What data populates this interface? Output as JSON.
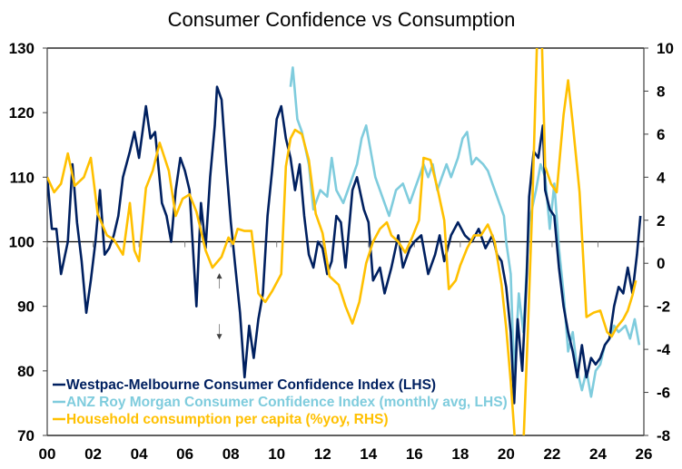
{
  "chart_data": {
    "type": "line",
    "title": "Consumer Confidence vs Consumption",
    "xlabel": "",
    "ylabel_left": "",
    "ylabel_right": "",
    "x_range": [
      2000,
      2026
    ],
    "x_ticks": [
      2000,
      2002,
      2004,
      2006,
      2008,
      2010,
      2012,
      2014,
      2016,
      2018,
      2020,
      2022,
      2024,
      2026
    ],
    "x_tick_labels": [
      "00",
      "02",
      "04",
      "06",
      "08",
      "10",
      "12",
      "14",
      "16",
      "18",
      "20",
      "22",
      "24",
      "26"
    ],
    "ylim_left": [
      70,
      130
    ],
    "yticks_left": [
      "130",
      "120",
      "110",
      "100",
      "90",
      "80",
      "70"
    ],
    "ylim_right": [
      -8,
      10
    ],
    "yticks_right": [
      "10",
      "8",
      "6",
      "4",
      "2",
      "0",
      "-2",
      "-4",
      "-6",
      "-8"
    ],
    "reference_line_left": 100,
    "grid": false,
    "legend_position": "bottom-left",
    "series": [
      {
        "name": "Westpac-Melbourne Consumer Confidence Index (LHS)",
        "axis": "left",
        "color": "#002060",
        "x": [
          2000.0,
          2000.2,
          2000.4,
          2000.6,
          2000.9,
          2001.1,
          2001.3,
          2001.5,
          2001.7,
          2001.9,
          2002.1,
          2002.3,
          2002.5,
          2002.7,
          2002.9,
          2003.1,
          2003.3,
          2003.6,
          2003.8,
          2004.0,
          2004.3,
          2004.5,
          2004.7,
          2005.0,
          2005.2,
          2005.4,
          2005.6,
          2005.8,
          2006.0,
          2006.2,
          2006.5,
          2006.7,
          2006.9,
          2007.1,
          2007.3,
          2007.4,
          2007.6,
          2007.8,
          2008.0,
          2008.2,
          2008.4,
          2008.6,
          2008.8,
          2009.0,
          2009.2,
          2009.4,
          2009.6,
          2009.8,
          2010.0,
          2010.2,
          2010.4,
          2010.6,
          2010.8,
          2011.0,
          2011.2,
          2011.4,
          2011.6,
          2011.8,
          2012.0,
          2012.2,
          2012.4,
          2012.6,
          2012.8,
          2013.0,
          2013.3,
          2013.5,
          2013.8,
          2014.0,
          2014.2,
          2014.5,
          2014.7,
          2015.0,
          2015.3,
          2015.5,
          2015.8,
          2016.0,
          2016.3,
          2016.6,
          2016.9,
          2017.1,
          2017.3,
          2017.6,
          2017.9,
          2018.2,
          2018.5,
          2018.8,
          2019.1,
          2019.4,
          2019.6,
          2019.8,
          2020.0,
          2020.2,
          2020.35,
          2020.5,
          2020.7,
          2020.9,
          2021.0,
          2021.2,
          2021.4,
          2021.6,
          2021.7,
          2021.9,
          2022.1,
          2022.3,
          2022.5,
          2022.7,
          2022.9,
          2023.1,
          2023.3,
          2023.5,
          2023.7,
          2023.9,
          2024.1,
          2024.3,
          2024.5,
          2024.7,
          2024.9,
          2025.1,
          2025.3,
          2025.5,
          2025.7,
          2025.85
        ],
        "values": [
          110,
          102,
          102,
          95,
          100,
          112,
          103,
          97,
          89,
          94,
          100,
          108,
          98,
          99,
          101,
          104,
          110,
          114,
          117,
          113,
          121,
          116,
          117,
          106,
          104,
          100,
          108,
          113,
          111,
          108,
          90,
          106,
          99,
          110,
          118,
          124,
          122,
          112,
          103,
          96,
          89,
          79,
          87,
          82,
          88,
          92,
          104,
          111,
          119,
          121,
          116,
          113,
          108,
          112,
          104,
          98,
          96,
          100,
          99,
          95,
          97,
          104,
          103,
          96,
          108,
          110,
          105,
          103,
          94,
          96,
          92,
          96,
          101,
          96,
          99,
          100,
          101,
          95,
          98,
          101,
          97,
          101,
          103,
          101,
          100,
          102,
          99,
          101,
          98,
          97,
          93,
          86,
          75,
          88,
          80,
          95,
          107,
          114,
          113,
          118,
          108,
          105,
          104,
          96,
          90,
          86,
          83,
          79,
          84,
          79,
          82,
          81,
          82,
          84,
          85,
          90,
          93,
          92,
          96,
          92,
          98,
          104
        ]
      },
      {
        "name": "ANZ Roy Morgan Consumer Confidence Index (monthly avg, LHS)",
        "axis": "left",
        "color": "#7FCCDD",
        "x": [
          2010.6,
          2010.7,
          2010.9,
          2011.1,
          2011.4,
          2011.6,
          2011.9,
          2012.2,
          2012.4,
          2012.6,
          2012.9,
          2013.2,
          2013.5,
          2013.7,
          2013.9,
          2014.1,
          2014.3,
          2014.6,
          2014.9,
          2015.2,
          2015.5,
          2015.8,
          2016.0,
          2016.2,
          2016.4,
          2016.6,
          2016.8,
          2017.0,
          2017.2,
          2017.4,
          2017.6,
          2017.9,
          2018.1,
          2018.3,
          2018.5,
          2018.7,
          2019.0,
          2019.2,
          2019.4,
          2019.6,
          2019.9,
          2020.0,
          2020.2,
          2020.35,
          2020.55,
          2020.75,
          2021.0,
          2021.3,
          2021.5,
          2021.7,
          2021.9,
          2022.1,
          2022.3,
          2022.5,
          2022.7,
          2022.9,
          2023.1,
          2023.3,
          2023.5,
          2023.7,
          2023.9,
          2024.1,
          2024.3,
          2024.5,
          2024.7,
          2024.9,
          2025.2,
          2025.4,
          2025.6,
          2025.8
        ],
        "values": [
          124,
          127,
          119,
          117,
          112,
          105,
          108,
          107,
          113,
          108,
          106,
          109,
          112,
          116,
          118,
          114,
          110,
          107,
          104,
          108,
          109,
          106,
          108,
          110,
          112,
          110,
          112,
          108,
          110,
          112,
          110,
          113,
          116,
          117,
          112,
          113,
          112,
          111,
          109,
          107,
          104,
          100,
          95,
          79,
          92,
          86,
          103,
          108,
          112,
          110,
          102,
          109,
          99,
          92,
          83,
          86,
          80,
          77,
          80,
          76,
          80,
          81,
          84,
          85,
          87,
          86,
          87,
          85,
          88,
          84
        ]
      },
      {
        "name": "Household consumption per capita (%yoy, RHS)",
        "axis": "right",
        "color": "#FFC000",
        "x": [
          2000.0,
          2000.3,
          2000.6,
          2000.9,
          2001.2,
          2001.6,
          2001.9,
          2002.2,
          2002.6,
          2002.9,
          2003.3,
          2003.6,
          2003.8,
          2004.0,
          2004.3,
          2004.6,
          2004.9,
          2005.3,
          2005.6,
          2005.9,
          2006.2,
          2006.5,
          2006.9,
          2007.2,
          2007.6,
          2007.9,
          2008.1,
          2008.3,
          2008.6,
          2008.9,
          2009.2,
          2009.5,
          2009.8,
          2010.2,
          2010.4,
          2010.6,
          2010.8,
          2011.1,
          2011.4,
          2011.7,
          2012.0,
          2012.3,
          2012.7,
          2013.0,
          2013.3,
          2013.6,
          2013.9,
          2014.2,
          2014.5,
          2014.8,
          2015.0,
          2015.3,
          2015.6,
          2015.9,
          2016.2,
          2016.4,
          2016.7,
          2017.0,
          2017.3,
          2017.5,
          2017.8,
          2018.0,
          2018.3,
          2018.6,
          2018.9,
          2019.2,
          2019.5,
          2019.8,
          2020.0,
          2020.2,
          2020.4,
          2020.55,
          2020.75,
          2020.95,
          2021.15,
          2021.35,
          2021.55,
          2021.7,
          2021.95,
          2022.2,
          2022.5,
          2022.7,
          2022.9,
          2023.2,
          2023.5,
          2023.8,
          2024.1,
          2024.4,
          2024.6,
          2024.8,
          2025.1,
          2025.3,
          2025.5,
          2025.65
        ],
        "values": [
          4,
          3.3,
          3.7,
          5.1,
          3.6,
          4,
          4.9,
          2.3,
          1.3,
          1.1,
          0.4,
          2.8,
          0.6,
          0.1,
          3.5,
          4.3,
          5.6,
          4.3,
          2.2,
          3.0,
          3.2,
          2.4,
          0.6,
          -0.2,
          0.3,
          1.2,
          0.9,
          1.6,
          1.5,
          1.5,
          -1.4,
          -1.8,
          -1.3,
          -0.5,
          4.5,
          5.8,
          6.2,
          6.0,
          4.8,
          2.3,
          1.4,
          -0.6,
          -1.0,
          -2.0,
          -2.8,
          -1.8,
          0,
          1.0,
          1.6,
          1.9,
          1.3,
          1.0,
          0.5,
          1.2,
          2.0,
          4.9,
          4.8,
          3.5,
          2.0,
          -1.2,
          -0.8,
          -0.1,
          0.7,
          1.3,
          1.3,
          1.8,
          1.0,
          -1.0,
          -3.0,
          -5.5,
          -8.5,
          -9,
          -8.5,
          -3,
          3,
          10.5,
          10.5,
          4.5,
          3.7,
          3.3,
          6.9,
          8.5,
          6.5,
          3.3,
          -2.5,
          -2.3,
          -2.2,
          -3.2,
          -3.4,
          -3.0,
          -2.6,
          -2.2,
          -1.5,
          -0.8
        ]
      }
    ],
    "legend": [
      {
        "label": "Westpac-Melbourne Consumer Confidence Index (LHS)",
        "color": "#002060"
      },
      {
        "label": "ANZ Roy Morgan Consumer Confidence Index (monthly avg, LHS)",
        "color": "#7FCCDD"
      },
      {
        "label": "Household consumption per capita (%yoy, RHS)",
        "color": "#FFC000"
      }
    ],
    "annotations": [
      {
        "type": "double-arrow",
        "x": 2007.5,
        "y_from": 95,
        "y_to": 85,
        "color": "#404040"
      }
    ]
  }
}
